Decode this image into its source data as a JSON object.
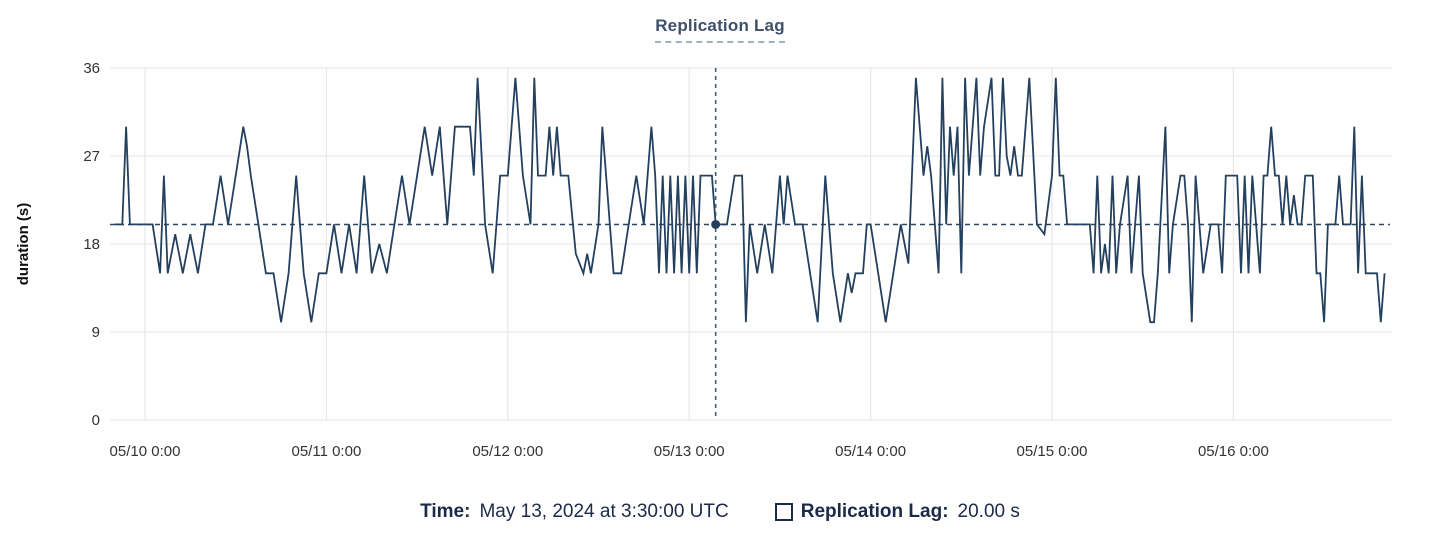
{
  "title": "Replication Lag",
  "y_axis": {
    "label": "duration (s)",
    "ticks": [
      0,
      9,
      18,
      27,
      36
    ],
    "max": 36
  },
  "x_axis": {
    "tick_labels": [
      "05/10 0:00",
      "05/11 0:00",
      "05/12 0:00",
      "05/13 0:00",
      "05/14 0:00",
      "05/15 0:00",
      "05/16 0:00"
    ],
    "tick_hours": [
      0,
      24,
      48,
      72,
      96,
      120,
      144
    ]
  },
  "tooltip": {
    "time_label": "Time:",
    "time_value": "May 13, 2024 at 3:30:00 UTC",
    "series_label": "Replication Lag:",
    "series_value": "20.00 s"
  },
  "annotations": {
    "hline_value": 20,
    "vline_hour": 75.5,
    "marker": {
      "hour": 75.5,
      "value": 20
    }
  },
  "colors": {
    "line": "#24405f",
    "grid": "#e9e9e9",
    "crosshair": "#3a6472",
    "reference_line": "#2b4563",
    "title": "#3e5168",
    "tooltip_text": "#1b2a49",
    "axis_text": "#333333"
  },
  "chart_data": {
    "type": "line",
    "title": "Replication Lag",
    "xlabel": "",
    "ylabel": "duration (s)",
    "ylim": [
      0,
      36
    ],
    "x_unit": "hours after 05/10 0:00 UTC",
    "grid": true,
    "legend_position": "bottom",
    "series": [
      {
        "name": "Replication Lag",
        "units": "s",
        "points": [
          [
            -4,
            20
          ],
          [
            -3,
            20
          ],
          [
            -2.5,
            30
          ],
          [
            -2,
            20
          ],
          [
            -1,
            20
          ],
          [
            0,
            20
          ],
          [
            1,
            20
          ],
          [
            2,
            15
          ],
          [
            2.5,
            25
          ],
          [
            3,
            15
          ],
          [
            4,
            19
          ],
          [
            5,
            15
          ],
          [
            6,
            19
          ],
          [
            7,
            15
          ],
          [
            8,
            20
          ],
          [
            9,
            20
          ],
          [
            10,
            25
          ],
          [
            11,
            20
          ],
          [
            12,
            25
          ],
          [
            13,
            30
          ],
          [
            13.5,
            28
          ],
          [
            14,
            25
          ],
          [
            15,
            20
          ],
          [
            16,
            15
          ],
          [
            17,
            15
          ],
          [
            18,
            10
          ],
          [
            19,
            15
          ],
          [
            20,
            25
          ],
          [
            21,
            15
          ],
          [
            22,
            10
          ],
          [
            23,
            15
          ],
          [
            24,
            15
          ],
          [
            25,
            20
          ],
          [
            26,
            15
          ],
          [
            27,
            20
          ],
          [
            28,
            15
          ],
          [
            29,
            25
          ],
          [
            30,
            15
          ],
          [
            31,
            18
          ],
          [
            32,
            15
          ],
          [
            33,
            20
          ],
          [
            34,
            25
          ],
          [
            35,
            20
          ],
          [
            36,
            25
          ],
          [
            37,
            30
          ],
          [
            38,
            25
          ],
          [
            39,
            30
          ],
          [
            40,
            20
          ],
          [
            41,
            30
          ],
          [
            42,
            30
          ],
          [
            43,
            30
          ],
          [
            43.5,
            25
          ],
          [
            44,
            35
          ],
          [
            45,
            20
          ],
          [
            46,
            15
          ],
          [
            47,
            25
          ],
          [
            48,
            25
          ],
          [
            49,
            35
          ],
          [
            50,
            25
          ],
          [
            51,
            20
          ],
          [
            51.5,
            35
          ],
          [
            52,
            25
          ],
          [
            53,
            25
          ],
          [
            53.5,
            30
          ],
          [
            54,
            25
          ],
          [
            54.5,
            30
          ],
          [
            55,
            25
          ],
          [
            56,
            25
          ],
          [
            57,
            17
          ],
          [
            58,
            15
          ],
          [
            58.5,
            17
          ],
          [
            59,
            15
          ],
          [
            60,
            20
          ],
          [
            60.5,
            30
          ],
          [
            61,
            25
          ],
          [
            62,
            15
          ],
          [
            63,
            15
          ],
          [
            64,
            20
          ],
          [
            65,
            25
          ],
          [
            66,
            20
          ],
          [
            67,
            30
          ],
          [
            67.5,
            25
          ],
          [
            68,
            15
          ],
          [
            68.5,
            25
          ],
          [
            69,
            15
          ],
          [
            69.5,
            25
          ],
          [
            70,
            15
          ],
          [
            70.5,
            25
          ],
          [
            71,
            15
          ],
          [
            71.5,
            25
          ],
          [
            72,
            15
          ],
          [
            72.5,
            25
          ],
          [
            73,
            15
          ],
          [
            73.5,
            25
          ],
          [
            74,
            25
          ],
          [
            75,
            25
          ],
          [
            75.5,
            20
          ],
          [
            76,
            20
          ],
          [
            77,
            20
          ],
          [
            78,
            25
          ],
          [
            79,
            25
          ],
          [
            79.5,
            10
          ],
          [
            80,
            20
          ],
          [
            81,
            15
          ],
          [
            82,
            20
          ],
          [
            83,
            15
          ],
          [
            84,
            25
          ],
          [
            84.5,
            20
          ],
          [
            85,
            25
          ],
          [
            86,
            20
          ],
          [
            87,
            20
          ],
          [
            88,
            15
          ],
          [
            89,
            10
          ],
          [
            90,
            25
          ],
          [
            91,
            15
          ],
          [
            92,
            10
          ],
          [
            93,
            15
          ],
          [
            93.5,
            13
          ],
          [
            94,
            15
          ],
          [
            95,
            15
          ],
          [
            95.5,
            20
          ],
          [
            96,
            20
          ],
          [
            97,
            15
          ],
          [
            98,
            10
          ],
          [
            99,
            15
          ],
          [
            100,
            20
          ],
          [
            101,
            16
          ],
          [
            102,
            35
          ],
          [
            103,
            25
          ],
          [
            103.5,
            28
          ],
          [
            104,
            25
          ],
          [
            105,
            15
          ],
          [
            105.5,
            35
          ],
          [
            106,
            20
          ],
          [
            106.5,
            30
          ],
          [
            107,
            25
          ],
          [
            107.5,
            30
          ],
          [
            108,
            15
          ],
          [
            108.5,
            35
          ],
          [
            109,
            25
          ],
          [
            110,
            35
          ],
          [
            110.5,
            25
          ],
          [
            111,
            30
          ],
          [
            112,
            35
          ],
          [
            112.5,
            25
          ],
          [
            113,
            25
          ],
          [
            113.5,
            35
          ],
          [
            114,
            27
          ],
          [
            114.5,
            25
          ],
          [
            115,
            28
          ],
          [
            115.5,
            25
          ],
          [
            116,
            25
          ],
          [
            117,
            35
          ],
          [
            118,
            20
          ],
          [
            119,
            19
          ],
          [
            120,
            25
          ],
          [
            120.5,
            35
          ],
          [
            121,
            25
          ],
          [
            121.5,
            25
          ],
          [
            122,
            20
          ],
          [
            123,
            20
          ],
          [
            124,
            20
          ],
          [
            125,
            20
          ],
          [
            125.5,
            15
          ],
          [
            126,
            25
          ],
          [
            126.5,
            15
          ],
          [
            127,
            18
          ],
          [
            127.5,
            15
          ],
          [
            128,
            25
          ],
          [
            128.5,
            15
          ],
          [
            129,
            20
          ],
          [
            130,
            25
          ],
          [
            130.5,
            15
          ],
          [
            131,
            20
          ],
          [
            131.5,
            25
          ],
          [
            132,
            15
          ],
          [
            133,
            10
          ],
          [
            133.5,
            10
          ],
          [
            134,
            15
          ],
          [
            135,
            30
          ],
          [
            135.5,
            15
          ],
          [
            136,
            20
          ],
          [
            137,
            25
          ],
          [
            137.5,
            25
          ],
          [
            138,
            20
          ],
          [
            138.5,
            10
          ],
          [
            139,
            25
          ],
          [
            140,
            15
          ],
          [
            141,
            20
          ],
          [
            141.5,
            20
          ],
          [
            142,
            20
          ],
          [
            142.5,
            15
          ],
          [
            143,
            25
          ],
          [
            144,
            25
          ],
          [
            144.5,
            25
          ],
          [
            145,
            15
          ],
          [
            145.5,
            25
          ],
          [
            146,
            15
          ],
          [
            146.5,
            25
          ],
          [
            147,
            20
          ],
          [
            147.5,
            15
          ],
          [
            148,
            25
          ],
          [
            148.5,
            25
          ],
          [
            149,
            30
          ],
          [
            149.5,
            25
          ],
          [
            150,
            25
          ],
          [
            150.5,
            20
          ],
          [
            151,
            25
          ],
          [
            151.5,
            20
          ],
          [
            152,
            23
          ],
          [
            152.5,
            20
          ],
          [
            153,
            20
          ],
          [
            153.5,
            25
          ],
          [
            154,
            25
          ],
          [
            154.5,
            25
          ],
          [
            155,
            15
          ],
          [
            155.5,
            15
          ],
          [
            156,
            10
          ],
          [
            156.5,
            20
          ],
          [
            157,
            20
          ],
          [
            157.5,
            20
          ],
          [
            158,
            25
          ],
          [
            158.5,
            20
          ],
          [
            159,
            20
          ],
          [
            159.5,
            20
          ],
          [
            160,
            30
          ],
          [
            160.5,
            15
          ],
          [
            161,
            25
          ],
          [
            161.5,
            15
          ],
          [
            162,
            15
          ],
          [
            162.5,
            15
          ],
          [
            163,
            15
          ],
          [
            163.5,
            10
          ],
          [
            164,
            15
          ]
        ]
      }
    ]
  }
}
